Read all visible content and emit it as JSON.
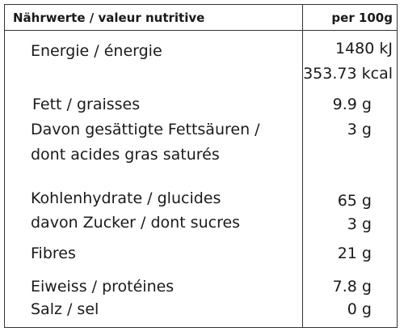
{
  "header": {
    "left": "Nährwerte / valeur nutritive",
    "right": "per 100g"
  },
  "rows": [
    {
      "label": "Energie / énergie",
      "value": "1480 kJ"
    },
    {
      "label": "",
      "value": "353.73 kcal"
    },
    {
      "label": "Fett / graisses",
      "value": "9.9 g"
    },
    {
      "label": "Davon gesättigte Fettsäuren /",
      "value": "3 g"
    },
    {
      "label": "dont acides gras saturés",
      "value": ""
    },
    {
      "label": "Kohlenhydrate / glucides",
      "value": "65 g"
    },
    {
      "label": "davon Zucker / dont sucres",
      "value": "3 g"
    },
    {
      "label": "Fibres",
      "value": "21 g"
    },
    {
      "label": "Eiweiss / protéines",
      "value": "7.8 g"
    },
    {
      "label": "Salz / sel",
      "value": "0 g"
    }
  ]
}
